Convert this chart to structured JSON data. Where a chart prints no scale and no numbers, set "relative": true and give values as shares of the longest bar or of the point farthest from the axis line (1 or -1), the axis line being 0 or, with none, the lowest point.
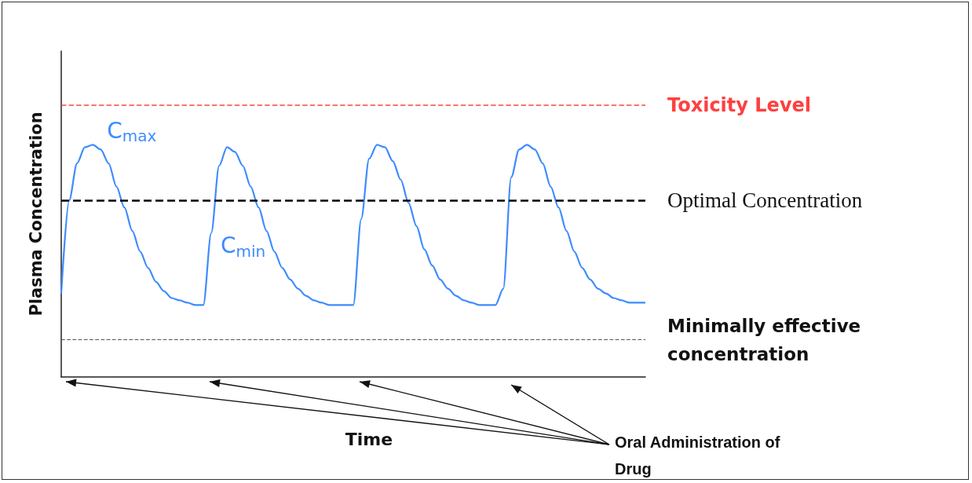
{
  "chart_data": {
    "type": "line",
    "relative": true,
    "xlabel": "Time",
    "ylabel": "Plasma Concentration",
    "grid": false,
    "marker": "none",
    "line_style": "solid",
    "categories": [
      null,
      null,
      null,
      null,
      null,
      null,
      null,
      null,
      null,
      null,
      null,
      null,
      null,
      null,
      null,
      null,
      null,
      null,
      null,
      null,
      null,
      null,
      null,
      null,
      null,
      null,
      null,
      null,
      null,
      null,
      null,
      null,
      null,
      null,
      null,
      null,
      null,
      null,
      null,
      null,
      null,
      null,
      null,
      null,
      null,
      null,
      null,
      null,
      null,
      null,
      null,
      null,
      null,
      null,
      null,
      null,
      null,
      null,
      null,
      null,
      null,
      null,
      null,
      null,
      null,
      null,
      null,
      null,
      null,
      null,
      null,
      null,
      null,
      null,
      null
    ],
    "series": [
      {
        "color": "#3d8bff",
        "values": [
          0.36,
          0.76,
          0.92,
          0.99,
          1,
          0.98,
          0.92,
          0.82,
          0.73,
          0.63,
          0.54,
          0.47,
          0.41,
          0.37,
          0.34,
          0.33,
          0.32,
          0.31,
          0.31,
          0.62,
          0.91,
          0.99,
          0.97,
          0.91,
          0.82,
          0.73,
          0.63,
          0.54,
          0.47,
          0.42,
          0.38,
          0.35,
          0.33,
          0.32,
          0.31,
          0.31,
          0.31,
          0.31,
          0.68,
          0.94,
          1,
          0.99,
          0.93,
          0.85,
          0.75,
          0.65,
          0.55,
          0.48,
          0.42,
          0.38,
          0.35,
          0.33,
          0.32,
          0.31,
          0.31,
          0.31,
          0.38,
          0.86,
          0.98,
          1,
          0.98,
          0.92,
          0.82,
          0.73,
          0.63,
          0.54,
          0.47,
          0.42,
          0.38,
          0.36,
          0.34,
          0.33,
          0.32,
          0.32,
          0.32
        ]
      }
    ],
    "ref_lines": [
      {
        "axis": "y",
        "value": 1.17,
        "label": "Toxicity Level",
        "color": "#ff4040",
        "line_style": "dashed"
      },
      {
        "axis": "y",
        "value": 0.76,
        "label": "Optimal Concentration",
        "color": "#000000",
        "line_style": "dashed"
      },
      {
        "axis": "y",
        "value": 0.16,
        "label": "Minimally effective concentration",
        "color": "#555555",
        "line_style": "dashed"
      }
    ],
    "annotations": [
      "C$_{max}$",
      "C$_{min}$",
      "Oral Administration of Drug"
    ]
  }
}
